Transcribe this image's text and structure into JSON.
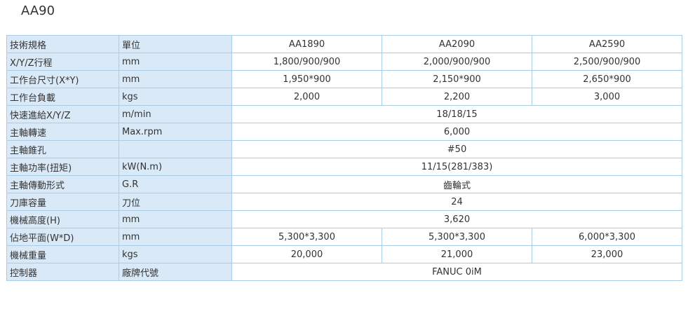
{
  "page": {
    "title": "AA90"
  },
  "table": {
    "rows": [
      {
        "label": "技術規格",
        "unit": "單位",
        "values": [
          "AA1890",
          "AA2090",
          "AA2590"
        ]
      },
      {
        "label": "X/Y/Z行程",
        "unit": "mm",
        "values": [
          "1,800/900/900",
          "2,000/900/900",
          "2,500/900/900"
        ]
      },
      {
        "label": "工作台尺寸(X*Y)",
        "unit": "mm",
        "values": [
          "1,950*900",
          "2,150*900",
          "2,650*900"
        ]
      },
      {
        "label": "工作台負載",
        "unit": "kgs",
        "values": [
          "2,000",
          "2,200",
          "3,000"
        ]
      },
      {
        "label": "快速進給X/Y/Z",
        "unit": "m/min",
        "values": [
          "18/18/15"
        ]
      },
      {
        "label": "主軸轉速",
        "unit": "Max.rpm",
        "values": [
          "6,000"
        ]
      },
      {
        "label": "主軸錐孔",
        "unit": "",
        "values": [
          "#50"
        ]
      },
      {
        "label": "主軸功率(扭矩)",
        "unit": "kW(N.m)",
        "values": [
          "11/15(281/383)"
        ]
      },
      {
        "label": "主軸傳動形式",
        "unit": "G.R",
        "values": [
          "齒輪式"
        ]
      },
      {
        "label": "刀庫容量",
        "unit": "刀位",
        "values": [
          "24"
        ]
      },
      {
        "label": "機械高度(H)",
        "unit": "mm",
        "values": [
          "3,620"
        ]
      },
      {
        "label": "佔地平面(W*D)",
        "unit": "mm",
        "values": [
          "5,300*3,300",
          "5,300*3,300",
          "6,000*3,300"
        ]
      },
      {
        "label": "機械重量",
        "unit": "kgs",
        "values": [
          "20,000",
          "21,000",
          "23,000"
        ]
      },
      {
        "label": "控制器",
        "unit": "廠牌代號",
        "values": [
          "FANUC 0iM"
        ]
      }
    ]
  }
}
